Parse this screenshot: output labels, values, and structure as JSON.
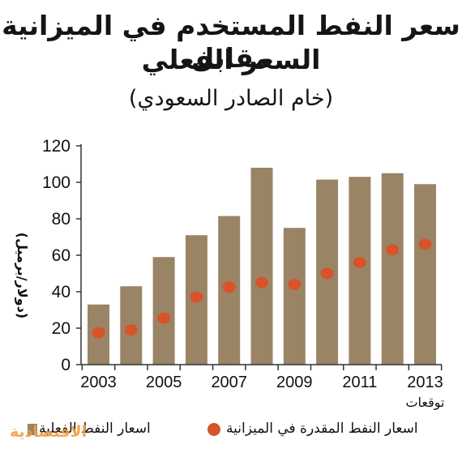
{
  "header": {
    "title_line1": "سعر النفط المستخدم في الميزانية مقابل",
    "title_line2": "السعر الفعلي",
    "subtitle": "(خام الصادر السعودي)"
  },
  "colors": {
    "bar": "#9a8466",
    "marker": "#d9532a",
    "axis": "#333333",
    "logo": "#f29e3e"
  },
  "chart_data": {
    "type": "bar",
    "ylabel": "(دولار/برميل)",
    "ylim": [
      0,
      120
    ],
    "yticks": [
      0,
      20,
      40,
      60,
      80,
      100,
      120
    ],
    "x": [
      2003,
      2004,
      2005,
      2006,
      2007,
      2008,
      2009,
      2010,
      2011,
      2012,
      2013
    ],
    "xtick_labels": [
      "2003",
      "2005",
      "2007",
      "2009",
      "2011",
      "2013"
    ],
    "forecast_label": "توقعات",
    "series": [
      {
        "name": "اسعار النفط الفعلية",
        "kind": "bar",
        "values": [
          33,
          43,
          59,
          71,
          81.5,
          108,
          75,
          101.5,
          103,
          105,
          99
        ]
      },
      {
        "name": "اسعار النفط المقدرة في الميزانية",
        "kind": "dot",
        "values": [
          17.5,
          19,
          25.5,
          37,
          42.5,
          45,
          44,
          50,
          56,
          63,
          66
        ]
      }
    ],
    "legend_position": "bottom"
  },
  "legend": {
    "estimated": "اسعار النفط المقدرة في الميزانية",
    "actual": "اسعار النفط الفعلية"
  },
  "logo": {
    "text": "الاقتصادية"
  }
}
